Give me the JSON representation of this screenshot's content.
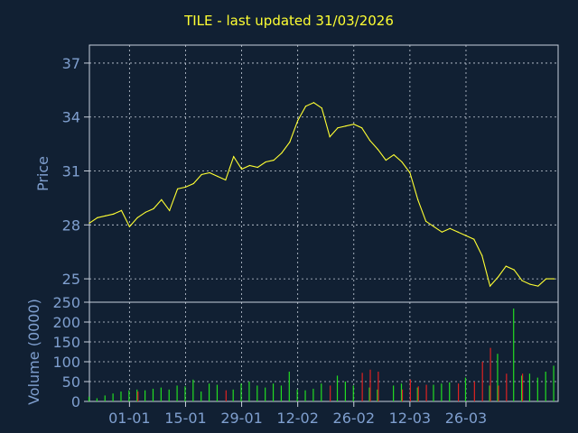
{
  "title": "TILE - last updated 31/03/2026",
  "colors": {
    "background": "#112033",
    "price_line": "#ffff33",
    "volume_up": "#22dd22",
    "volume_down": "#dd2222",
    "axis_text": "#7f9fcf",
    "grid": "#c8d0dc"
  },
  "chart_data": [
    {
      "type": "line",
      "ylabel": "Price",
      "ylim": [
        23.7,
        38
      ],
      "yticks": [
        25,
        28,
        31,
        34,
        37
      ],
      "grid": true,
      "x_day_range": [
        0,
        117
      ],
      "series": [
        {
          "x": [
            0,
            2,
            4,
            6,
            8,
            10,
            12,
            14,
            16,
            18,
            20,
            22,
            24,
            26,
            28,
            30,
            32,
            34,
            36,
            38,
            40,
            42,
            44,
            46,
            48,
            50,
            52,
            54,
            56,
            58,
            60,
            62,
            64,
            66,
            68,
            70,
            72,
            74,
            76,
            78,
            80,
            82,
            84,
            86,
            88,
            90,
            92,
            94,
            96,
            98,
            100,
            102,
            104,
            106,
            108,
            110,
            112,
            114,
            116
          ],
          "values": [
            28.1,
            28.4,
            28.5,
            28.6,
            28.8,
            27.9,
            28.4,
            28.7,
            28.9,
            29.4,
            28.8,
            30.0,
            30.1,
            30.3,
            30.8,
            30.9,
            30.7,
            30.5,
            31.8,
            31.1,
            31.3,
            31.2,
            31.5,
            31.6,
            32.0,
            32.6,
            33.8,
            34.6,
            34.8,
            34.5,
            32.9,
            33.4,
            33.5,
            33.6,
            33.4,
            32.7,
            32.2,
            31.6,
            31.9,
            31.5,
            30.9,
            29.4,
            28.2,
            27.9,
            27.6,
            27.8,
            27.6,
            27.4,
            27.2,
            26.3,
            24.6,
            25.1,
            25.7,
            25.5,
            24.9,
            24.7,
            24.6,
            25.0,
            25.0
          ]
        }
      ]
    },
    {
      "type": "bar",
      "ylabel": "Volume (0000)",
      "ylim": [
        0,
        250
      ],
      "yticks": [
        0,
        50,
        100,
        150,
        200,
        250
      ],
      "grid": true,
      "x_day_range": [
        0,
        117
      ],
      "xtick_labels": [
        "01-01",
        "15-01",
        "29-01",
        "12-02",
        "26-02",
        "12-03",
        "26-03"
      ],
      "xtick_days": [
        10,
        24,
        38,
        52,
        66,
        80,
        94
      ],
      "series": [
        {
          "name": "up",
          "x": [
            0,
            2,
            4,
            6,
            8,
            10,
            12,
            14,
            16,
            18,
            20,
            22,
            24,
            26,
            28,
            30,
            32,
            36,
            38,
            40,
            42,
            44,
            46,
            48,
            50,
            52,
            54,
            56,
            58,
            62,
            64,
            66,
            70,
            72,
            76,
            78,
            82,
            86,
            88,
            90,
            94,
            100,
            102,
            106,
            108,
            110,
            112,
            114,
            116
          ],
          "values": [
            12,
            8,
            15,
            20,
            25,
            28,
            30,
            28,
            32,
            35,
            30,
            40,
            38,
            55,
            25,
            45,
            42,
            30,
            45,
            50,
            40,
            35,
            45,
            40,
            75,
            30,
            28,
            32,
            45,
            65,
            50,
            40,
            35,
            30,
            40,
            45,
            35,
            42,
            45,
            48,
            60,
            40,
            120,
            234,
            65,
            70,
            60,
            75,
            90
          ]
        },
        {
          "name": "down",
          "x": [
            12,
            34,
            60,
            68,
            70,
            72,
            78,
            80,
            82,
            84,
            92,
            96,
            98,
            100,
            102,
            104,
            108
          ],
          "values": [
            25,
            28,
            40,
            72,
            80,
            75,
            30,
            55,
            38,
            42,
            45,
            50,
            100,
            135,
            40,
            70,
            70
          ]
        }
      ]
    }
  ]
}
